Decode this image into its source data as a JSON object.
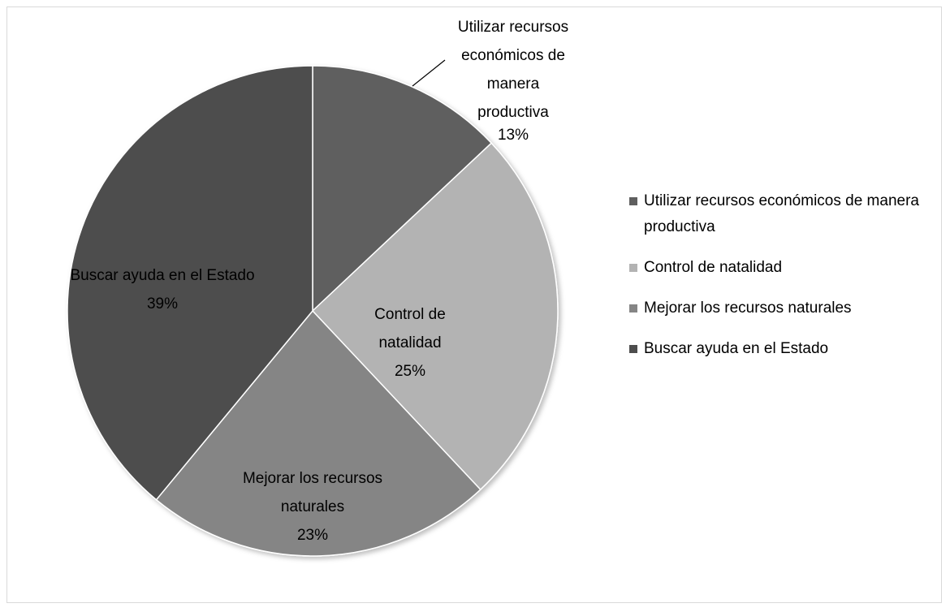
{
  "chart_data": {
    "type": "pie",
    "categories": [
      "Utilizar recursos económicos de manera productiva",
      "Control de natalidad",
      "Mejorar los recursos naturales",
      "Buscar ayuda en el Estado"
    ],
    "values": [
      13,
      25,
      23,
      39
    ],
    "value_labels": [
      "13%",
      "25%",
      "23%",
      "39%"
    ],
    "colors": [
      "#5f5f5f",
      "#b3b3b3",
      "#858585",
      "#4d4d4d"
    ],
    "legend": "right"
  }
}
